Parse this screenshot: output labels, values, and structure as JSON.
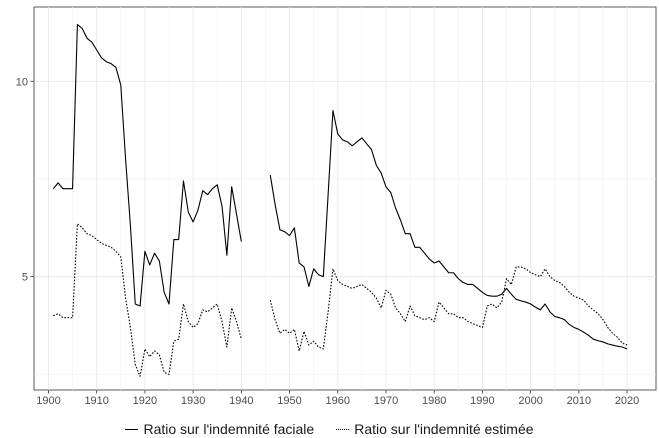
{
  "chart_data": {
    "type": "line",
    "title": "",
    "xlabel": "",
    "ylabel": "",
    "xlim": [
      1897,
      2026
    ],
    "ylim": [
      2.1,
      11.9
    ],
    "x_ticks": [
      1900,
      1910,
      1920,
      1930,
      1940,
      1950,
      1960,
      1970,
      1980,
      1990,
      2000,
      2010,
      2020
    ],
    "y_ticks": [
      5,
      10
    ],
    "y_tick_labels": [
      "5",
      "10"
    ],
    "grid": true,
    "legend_position": "bottom",
    "series": [
      {
        "name": "Ratio sur l'indemnité faciale",
        "style": "solid",
        "color": "#000000",
        "points": [
          [
            1901,
            7.25
          ],
          [
            1902,
            7.4
          ],
          [
            1903,
            7.25
          ],
          [
            1904,
            7.25
          ],
          [
            1905,
            7.25
          ],
          [
            1906,
            11.45
          ],
          [
            1907,
            11.35
          ],
          [
            1908,
            11.1
          ],
          [
            1909,
            11.0
          ],
          [
            1910,
            10.8
          ],
          [
            1911,
            10.6
          ],
          [
            1912,
            10.5
          ],
          [
            1913,
            10.45
          ],
          [
            1914,
            10.35
          ],
          [
            1915,
            9.9
          ],
          [
            1916,
            8.0
          ],
          [
            1917,
            6.3
          ],
          [
            1918,
            4.3
          ],
          [
            1919,
            4.25
          ],
          [
            1920,
            5.65
          ],
          [
            1921,
            5.3
          ],
          [
            1922,
            5.6
          ],
          [
            1923,
            5.4
          ],
          [
            1924,
            4.6
          ],
          [
            1925,
            4.3
          ],
          [
            1926,
            5.95
          ],
          [
            1927,
            5.95
          ],
          [
            1928,
            7.45
          ],
          [
            1929,
            6.65
          ],
          [
            1930,
            6.4
          ],
          [
            1931,
            6.7
          ],
          [
            1932,
            7.2
          ],
          [
            1933,
            7.1
          ],
          [
            1934,
            7.25
          ],
          [
            1935,
            7.35
          ],
          [
            1936,
            6.8
          ],
          [
            1937,
            5.55
          ],
          [
            1938,
            7.3
          ],
          [
            1939,
            6.6
          ],
          [
            1940,
            5.9
          ],
          null,
          [
            1946,
            7.6
          ],
          [
            1947,
            6.85
          ],
          [
            1948,
            6.2
          ],
          [
            1949,
            6.15
          ],
          [
            1950,
            6.05
          ],
          [
            1951,
            6.25
          ],
          [
            1952,
            5.35
          ],
          [
            1953,
            5.25
          ],
          [
            1954,
            4.75
          ],
          [
            1955,
            5.2
          ],
          [
            1956,
            5.05
          ],
          [
            1957,
            5.0
          ],
          [
            1958,
            7.1
          ],
          [
            1959,
            9.25
          ],
          [
            1960,
            8.65
          ],
          [
            1961,
            8.5
          ],
          [
            1962,
            8.45
          ],
          [
            1963,
            8.35
          ],
          [
            1964,
            8.45
          ],
          [
            1965,
            8.55
          ],
          [
            1966,
            8.4
          ],
          [
            1967,
            8.25
          ],
          [
            1968,
            7.85
          ],
          [
            1969,
            7.65
          ],
          [
            1970,
            7.3
          ],
          [
            1971,
            7.15
          ],
          [
            1972,
            6.75
          ],
          [
            1973,
            6.45
          ],
          [
            1974,
            6.1
          ],
          [
            1975,
            6.1
          ],
          [
            1976,
            5.75
          ],
          [
            1977,
            5.75
          ],
          [
            1978,
            5.6
          ],
          [
            1979,
            5.45
          ],
          [
            1980,
            5.35
          ],
          [
            1981,
            5.4
          ],
          [
            1982,
            5.25
          ],
          [
            1983,
            5.1
          ],
          [
            1984,
            5.1
          ],
          [
            1985,
            4.95
          ],
          [
            1986,
            4.85
          ],
          [
            1987,
            4.8
          ],
          [
            1988,
            4.8
          ],
          [
            1989,
            4.7
          ],
          [
            1990,
            4.6
          ],
          [
            1991,
            4.52
          ],
          [
            1992,
            4.5
          ],
          [
            1993,
            4.5
          ],
          [
            1994,
            4.55
          ],
          [
            1995,
            4.7
          ],
          [
            1996,
            4.55
          ],
          [
            1997,
            4.42
          ],
          [
            1998,
            4.38
          ],
          [
            1999,
            4.35
          ],
          [
            2000,
            4.3
          ],
          [
            2001,
            4.22
          ],
          [
            2002,
            4.15
          ],
          [
            2003,
            4.3
          ],
          [
            2004,
            4.1
          ],
          [
            2005,
            3.98
          ],
          [
            2006,
            3.95
          ],
          [
            2007,
            3.9
          ],
          [
            2008,
            3.78
          ],
          [
            2009,
            3.7
          ],
          [
            2010,
            3.65
          ],
          [
            2011,
            3.58
          ],
          [
            2012,
            3.5
          ],
          [
            2013,
            3.4
          ],
          [
            2014,
            3.36
          ],
          [
            2015,
            3.33
          ],
          [
            2016,
            3.28
          ],
          [
            2017,
            3.25
          ],
          [
            2018,
            3.22
          ],
          [
            2019,
            3.2
          ],
          [
            2020,
            3.15
          ]
        ]
      },
      {
        "name": "Ratio sur l'indemnité estimée",
        "style": "dotted",
        "color": "#000000",
        "points": [
          [
            1901,
            4.0
          ],
          [
            1902,
            4.05
          ],
          [
            1903,
            3.95
          ],
          [
            1904,
            3.95
          ],
          [
            1905,
            3.95
          ],
          [
            1906,
            6.35
          ],
          [
            1907,
            6.25
          ],
          [
            1908,
            6.1
          ],
          [
            1909,
            6.05
          ],
          [
            1910,
            5.95
          ],
          [
            1911,
            5.85
          ],
          [
            1912,
            5.8
          ],
          [
            1913,
            5.75
          ],
          [
            1914,
            5.65
          ],
          [
            1915,
            5.5
          ],
          [
            1916,
            4.45
          ],
          [
            1917,
            3.7
          ],
          [
            1918,
            2.75
          ],
          [
            1919,
            2.45
          ],
          [
            1920,
            3.15
          ],
          [
            1921,
            2.95
          ],
          [
            1922,
            3.1
          ],
          [
            1923,
            3.0
          ],
          [
            1924,
            2.55
          ],
          [
            1925,
            2.5
          ],
          [
            1926,
            3.35
          ],
          [
            1927,
            3.4
          ],
          [
            1928,
            4.3
          ],
          [
            1929,
            3.85
          ],
          [
            1930,
            3.7
          ],
          [
            1931,
            3.8
          ],
          [
            1932,
            4.15
          ],
          [
            1933,
            4.1
          ],
          [
            1934,
            4.2
          ],
          [
            1935,
            4.3
          ],
          [
            1936,
            3.85
          ],
          [
            1937,
            3.2
          ],
          [
            1938,
            4.2
          ],
          [
            1939,
            3.85
          ],
          [
            1940,
            3.4
          ],
          null,
          [
            1946,
            4.4
          ],
          [
            1947,
            3.9
          ],
          [
            1948,
            3.55
          ],
          [
            1949,
            3.65
          ],
          [
            1950,
            3.55
          ],
          [
            1951,
            3.65
          ],
          [
            1952,
            3.1
          ],
          [
            1953,
            3.6
          ],
          [
            1954,
            3.25
          ],
          [
            1955,
            3.35
          ],
          [
            1956,
            3.2
          ],
          [
            1957,
            3.15
          ],
          [
            1958,
            4.1
          ],
          [
            1959,
            5.2
          ],
          [
            1960,
            4.9
          ],
          [
            1961,
            4.8
          ],
          [
            1962,
            4.75
          ],
          [
            1963,
            4.7
          ],
          [
            1964,
            4.75
          ],
          [
            1965,
            4.8
          ],
          [
            1966,
            4.7
          ],
          [
            1967,
            4.6
          ],
          [
            1968,
            4.45
          ],
          [
            1969,
            4.2
          ],
          [
            1970,
            4.65
          ],
          [
            1971,
            4.55
          ],
          [
            1972,
            4.2
          ],
          [
            1973,
            4.05
          ],
          [
            1974,
            3.85
          ],
          [
            1975,
            4.25
          ],
          [
            1976,
            4.0
          ],
          [
            1977,
            3.95
          ],
          [
            1978,
            3.9
          ],
          [
            1979,
            3.95
          ],
          [
            1980,
            3.85
          ],
          [
            1981,
            4.35
          ],
          [
            1982,
            4.2
          ],
          [
            1983,
            4.05
          ],
          [
            1984,
            4.05
          ],
          [
            1985,
            3.95
          ],
          [
            1986,
            3.95
          ],
          [
            1987,
            3.85
          ],
          [
            1988,
            3.8
          ],
          [
            1989,
            3.75
          ],
          [
            1990,
            3.7
          ],
          [
            1991,
            4.25
          ],
          [
            1992,
            4.3
          ],
          [
            1993,
            4.2
          ],
          [
            1994,
            4.35
          ],
          [
            1995,
            4.95
          ],
          [
            1996,
            4.8
          ],
          [
            1997,
            5.25
          ],
          [
            1998,
            5.25
          ],
          [
            1999,
            5.2
          ],
          [
            2000,
            5.1
          ],
          [
            2001,
            5.05
          ],
          [
            2002,
            5.0
          ],
          [
            2003,
            5.2
          ],
          [
            2004,
            5.0
          ],
          [
            2005,
            4.9
          ],
          [
            2006,
            4.85
          ],
          [
            2007,
            4.75
          ],
          [
            2008,
            4.6
          ],
          [
            2009,
            4.5
          ],
          [
            2010,
            4.45
          ],
          [
            2011,
            4.4
          ],
          [
            2012,
            4.25
          ],
          [
            2013,
            4.15
          ],
          [
            2014,
            4.05
          ],
          [
            2015,
            3.9
          ],
          [
            2016,
            3.7
          ],
          [
            2017,
            3.55
          ],
          [
            2018,
            3.45
          ],
          [
            2019,
            3.3
          ],
          [
            2020,
            3.25
          ]
        ]
      }
    ]
  }
}
